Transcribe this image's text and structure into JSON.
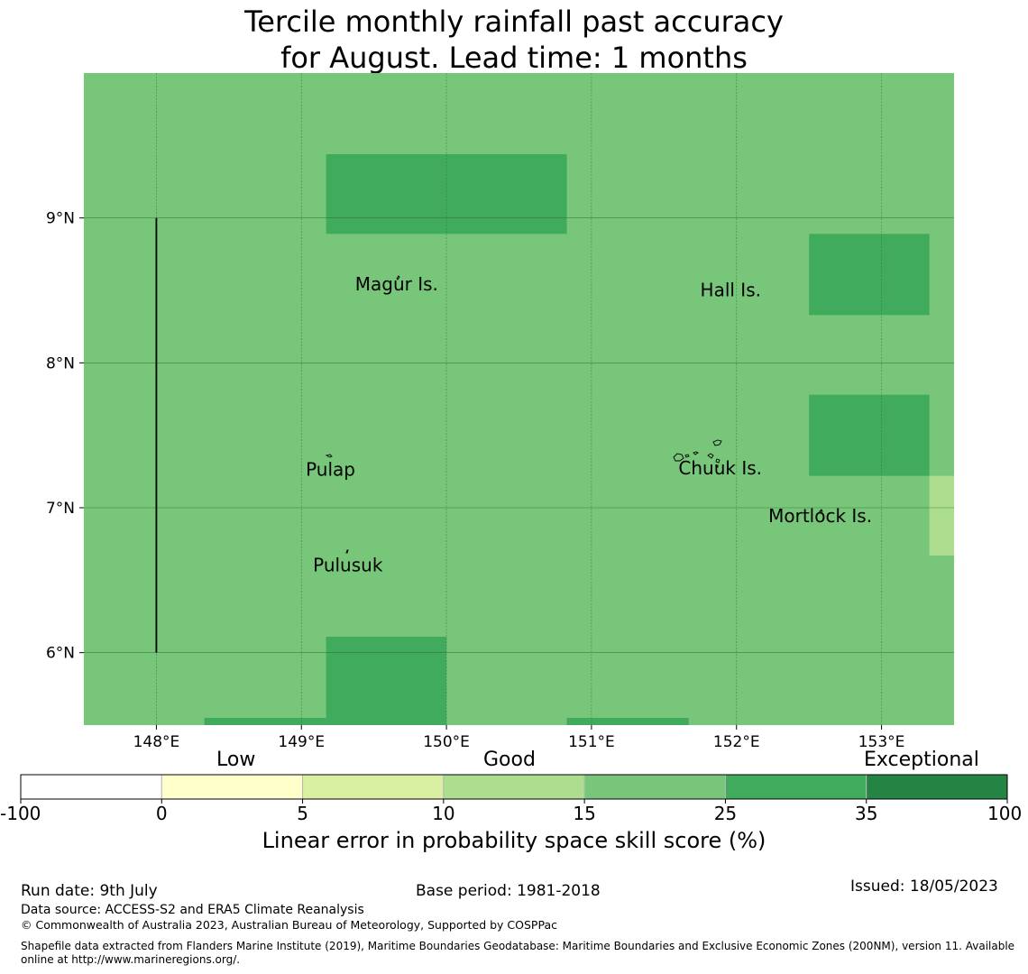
{
  "title_line1": "Tercile monthly rainfall past accuracy",
  "title_line2": "for August. Lead time: 1 months",
  "map": {
    "lon_range": [
      147.5,
      153.5
    ],
    "lat_range": [
      5.5,
      10.0
    ],
    "lon_ticks": [
      148,
      149,
      150,
      151,
      152,
      153
    ],
    "lon_tick_labels": [
      "148°E",
      "149°E",
      "150°E",
      "151°E",
      "152°E",
      "153°E"
    ],
    "lat_ticks": [
      6,
      7,
      8,
      9
    ],
    "lat_tick_labels": [
      "6°N",
      "7°N",
      "8°N",
      "9°N"
    ],
    "base_category": "15 to 25",
    "cells": [
      {
        "lon": [
          149.17,
          150.83
        ],
        "lat": [
          8.89,
          9.44
        ],
        "category": "25 to 35"
      },
      {
        "lon": [
          152.5,
          153.33
        ],
        "lat": [
          8.33,
          8.89
        ],
        "category": "25 to 35"
      },
      {
        "lon": [
          152.5,
          153.33
        ],
        "lat": [
          7.22,
          7.78
        ],
        "category": "25 to 35"
      },
      {
        "lon": [
          153.33,
          153.5
        ],
        "lat": [
          6.67,
          7.22
        ],
        "category": "10 to 15"
      },
      {
        "lon": [
          149.17,
          150.0
        ],
        "lat": [
          5.5,
          6.11
        ],
        "category": "25 to 35"
      },
      {
        "lon": [
          148.33,
          149.17
        ],
        "lat": [
          5.5,
          5.55
        ],
        "category": "25 to 35"
      },
      {
        "lon": [
          150.83,
          151.67
        ],
        "lat": [
          5.5,
          5.55
        ],
        "category": "25 to 35"
      }
    ],
    "boundary_line": {
      "lon": 148.0,
      "lat": [
        6.0,
        9.0
      ]
    },
    "places": [
      {
        "name": "Magur Is.",
        "lon": 149.37,
        "lat": 8.5
      },
      {
        "name": "Hall Is.",
        "lon": 151.75,
        "lat": 8.46
      },
      {
        "name": "Pulap",
        "lon": 149.03,
        "lat": 7.22
      },
      {
        "name": "Chuuk Is.",
        "lon": 151.6,
        "lat": 7.23
      },
      {
        "name": "Mortlock Is.",
        "lon": 152.22,
        "lat": 6.9
      },
      {
        "name": "Pulusuk",
        "lon": 149.08,
        "lat": 6.56
      }
    ]
  },
  "colorbar": {
    "category_labels": [
      "Low",
      "Good",
      "Exceptional"
    ],
    "ticks": [
      "-100",
      "0",
      "5",
      "10",
      "15",
      "25",
      "35",
      "100"
    ],
    "colors": [
      "#ffffff",
      "#ffffcc",
      "#d9f0a3",
      "#addd8e",
      "#78c679",
      "#41ab5d",
      "#238443"
    ],
    "title": "Linear error in probability space skill score (%)"
  },
  "footer": {
    "run_date": "Run date: 9th July",
    "base_period": "Base period: 1981-2018",
    "issued": "Issued: 18/05/2023",
    "data_source": "Data source: ACCESS-S2 and ERA5 Climate Reanalysis",
    "copyright": "© Commonwealth of Australia 2023, Australian Bureau of Meteorology, Supported by COSPPac",
    "shapefile": "Shapefile data extracted from Flanders Marine Institute (2019), Maritime Boundaries Geodatabase: Maritime Boundaries and Exclusive Economic Zones (200NM), version 11. Available online at http://www.marineregions.org/."
  }
}
